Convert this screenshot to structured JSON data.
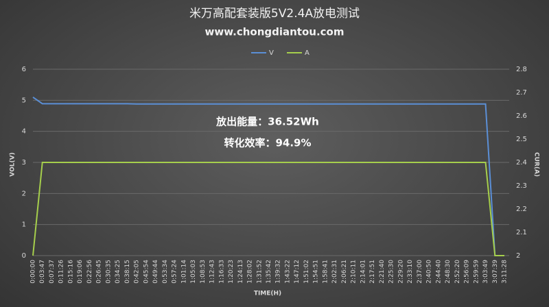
{
  "chart_data": {
    "type": "line",
    "title": "米万高配套装版5V2.4A放电测试",
    "subtitle": "www.chongdiantou.com",
    "x_label": "TIME(H)",
    "y_label": "VOL(V)",
    "y2_label": "CUR(A)",
    "annotations": [
      "放出能量：36.52Wh",
      "转化效率：94.9%"
    ],
    "categories": [
      "0:00:00",
      "0:03:47",
      "0:07:37",
      "0:11:26",
      "0:15:16",
      "0:19:06",
      "0:22:56",
      "0:26:45",
      "0:30:35",
      "0:34:25",
      "0:38:15",
      "0:42:05",
      "0:45:54",
      "0:49:44",
      "0:53:34",
      "0:57:24",
      "1:01:14",
      "1:05:03",
      "1:08:53",
      "1:12:43",
      "1:16:33",
      "1:20:23",
      "1:24:13",
      "1:28:02",
      "1:31:52",
      "1:35:42",
      "1:39:32",
      "1:43:22",
      "1:47:12",
      "1:51:02",
      "1:54:51",
      "1:58:41",
      "2:02:31",
      "2:06:21",
      "2:10:11",
      "2:14:01",
      "2:17:51",
      "2:21:40",
      "2:25:30",
      "2:29:20",
      "2:33:10",
      "2:37:00",
      "2:40:50",
      "2:44:40",
      "2:48:30",
      "2:52:20",
      "2:56:09",
      "2:59:59",
      "3:03:49",
      "3:07:39",
      "3:11:28"
    ],
    "series": [
      {
        "name": "V",
        "color": "#5b8fd6",
        "axis": "y",
        "values": [
          5.1,
          4.89,
          4.89,
          4.89,
          4.89,
          4.89,
          4.89,
          4.89,
          4.89,
          4.89,
          4.89,
          4.88,
          4.88,
          4.88,
          4.88,
          4.88,
          4.88,
          4.88,
          4.88,
          4.88,
          4.88,
          4.88,
          4.88,
          4.88,
          4.88,
          4.88,
          4.88,
          4.88,
          4.88,
          4.88,
          4.88,
          4.88,
          4.88,
          4.88,
          4.88,
          4.88,
          4.88,
          4.88,
          4.88,
          4.88,
          4.88,
          4.88,
          4.88,
          4.88,
          4.88,
          4.88,
          4.88,
          4.88,
          4.88,
          0,
          0
        ]
      },
      {
        "name": "A",
        "color": "#a6cf4c",
        "axis": "y2",
        "values": [
          2.0,
          2.4,
          2.4,
          2.4,
          2.4,
          2.4,
          2.4,
          2.4,
          2.4,
          2.4,
          2.4,
          2.4,
          2.4,
          2.4,
          2.4,
          2.4,
          2.4,
          2.4,
          2.4,
          2.4,
          2.4,
          2.4,
          2.4,
          2.4,
          2.4,
          2.4,
          2.4,
          2.4,
          2.4,
          2.4,
          2.4,
          2.4,
          2.4,
          2.4,
          2.4,
          2.4,
          2.4,
          2.4,
          2.4,
          2.4,
          2.4,
          2.4,
          2.4,
          2.4,
          2.4,
          2.4,
          2.4,
          2.4,
          2.4,
          2.0,
          2.0
        ]
      }
    ],
    "ylim": [
      0,
      6
    ],
    "yticks": [
      0,
      1,
      2,
      3,
      4,
      5,
      6
    ],
    "y2lim": [
      2,
      2.8
    ],
    "y2ticks": [
      2,
      2.1,
      2.2,
      2.3,
      2.4,
      2.5,
      2.6,
      2.7,
      2.8
    ],
    "grid": true,
    "legend": "top"
  }
}
